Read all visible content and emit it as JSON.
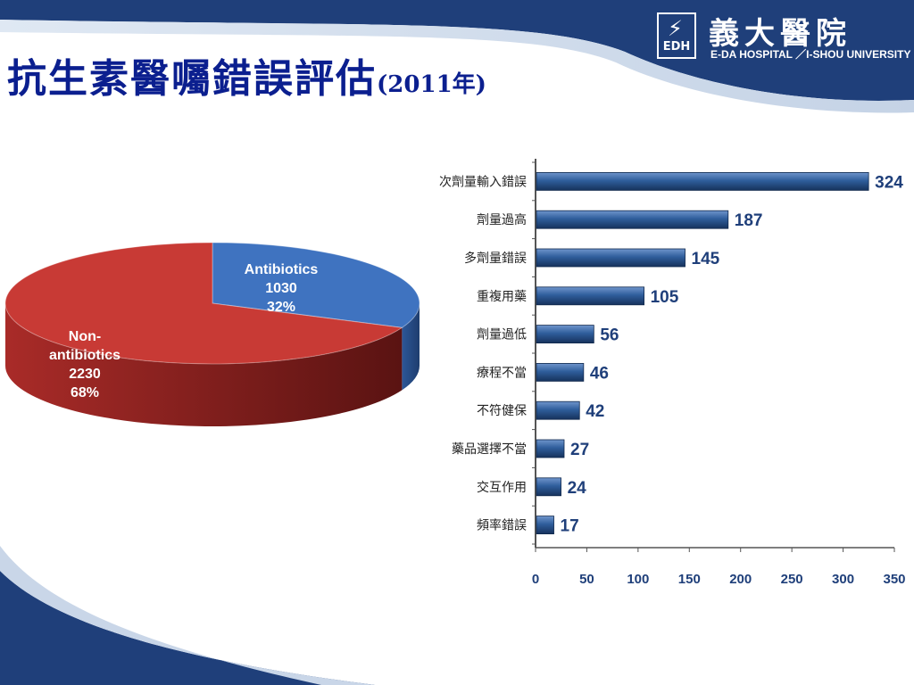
{
  "header": {
    "title": "抗生素醫囑錯誤評估",
    "title_year": "(2011年)",
    "logo_cn": "義大醫院",
    "logo_en": "E-DA HOSPITAL ／I-SHOU UNIVERSITY",
    "logo_mark": "EDH"
  },
  "colors": {
    "banner": "#1f3f7a",
    "title": "#0b1f8f",
    "pie_antibiotics": "#3f73c0",
    "pie_non_antibiotics": "#c83a35",
    "bar": "#2f5e9c",
    "value_label": "#1f3f7a"
  },
  "chart_data": [
    {
      "type": "pie",
      "slices": [
        {
          "label_lines": [
            "Antibiotics",
            "1030",
            "32%"
          ],
          "value": 1030,
          "percent": 32
        },
        {
          "label_lines": [
            "Non-",
            "antibiotics",
            "2230",
            "68%"
          ],
          "value": 2230,
          "percent": 68
        }
      ]
    },
    {
      "type": "bar",
      "orientation": "horizontal",
      "categories": [
        "次劑量輸入錯誤",
        "劑量過高",
        "多劑量錯誤",
        "重複用藥",
        "劑量過低",
        "療程不當",
        "不符健保",
        "藥品選擇不當",
        "交互作用",
        "頻率錯誤"
      ],
      "values": [
        324,
        187,
        145,
        105,
        56,
        46,
        42,
        27,
        24,
        17
      ],
      "xlim": [
        0,
        350
      ],
      "xticks": [
        "0",
        "50",
        "100",
        "150",
        "200",
        "250",
        "300",
        "350"
      ]
    }
  ]
}
